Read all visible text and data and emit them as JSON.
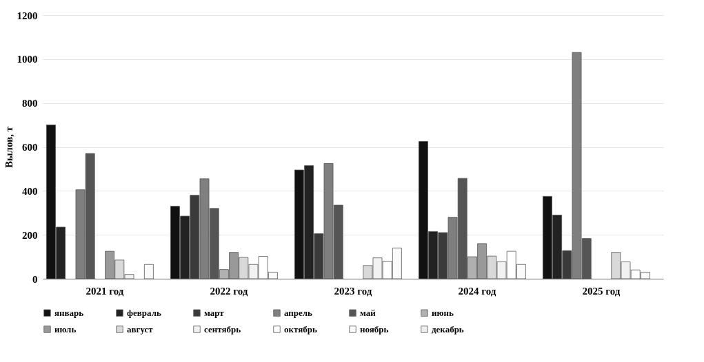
{
  "chart_data": {
    "type": "bar",
    "ylabel": "Вылов, т",
    "categories": [
      "2021 год",
      "2022 год",
      "2023 год",
      "2024 год",
      "2025 год"
    ],
    "ylim": [
      0,
      1200
    ],
    "yticks": [
      0,
      200,
      400,
      600,
      800,
      1000,
      1200
    ],
    "grid": "y",
    "legend": "bottom",
    "series": [
      {
        "name": "январь",
        "color": "#111111",
        "values": [
          700,
          330,
          495,
          625,
          375
        ]
      },
      {
        "name": "февраль",
        "color": "#222222",
        "values": [
          235,
          285,
          515,
          215,
          290
        ]
      },
      {
        "name": "март",
        "color": "#3a3a3a",
        "values": [
          null,
          380,
          205,
          210,
          128
        ]
      },
      {
        "name": "апрель",
        "color": "#7f7f7f",
        "values": [
          405,
          455,
          525,
          280,
          1030
        ]
      },
      {
        "name": "май",
        "color": "#555555",
        "values": [
          570,
          320,
          335,
          457,
          183
        ]
      },
      {
        "name": "июнь",
        "color": "#b0b0b0",
        "values": [
          null,
          42,
          null,
          100,
          null
        ]
      },
      {
        "name": "июль",
        "color": "#999999",
        "values": [
          125,
          120,
          null,
          160,
          null
        ]
      },
      {
        "name": "август",
        "color": "#d9d9d9",
        "values": [
          85,
          97,
          60,
          103,
          120
        ]
      },
      {
        "name": "сентябрь",
        "color": "#f2f2f2",
        "values": [
          20,
          65,
          95,
          78,
          77
        ]
      },
      {
        "name": "октябрь",
        "color": "#ffffff",
        "values": [
          null,
          102,
          80,
          125,
          40
        ]
      },
      {
        "name": "ноябрь",
        "color": "#fafafa",
        "values": [
          65,
          30,
          140,
          65,
          30
        ]
      },
      {
        "name": "декабрь",
        "color": "#eeeeee",
        "values": [
          null,
          null,
          null,
          null,
          null
        ]
      }
    ]
  }
}
